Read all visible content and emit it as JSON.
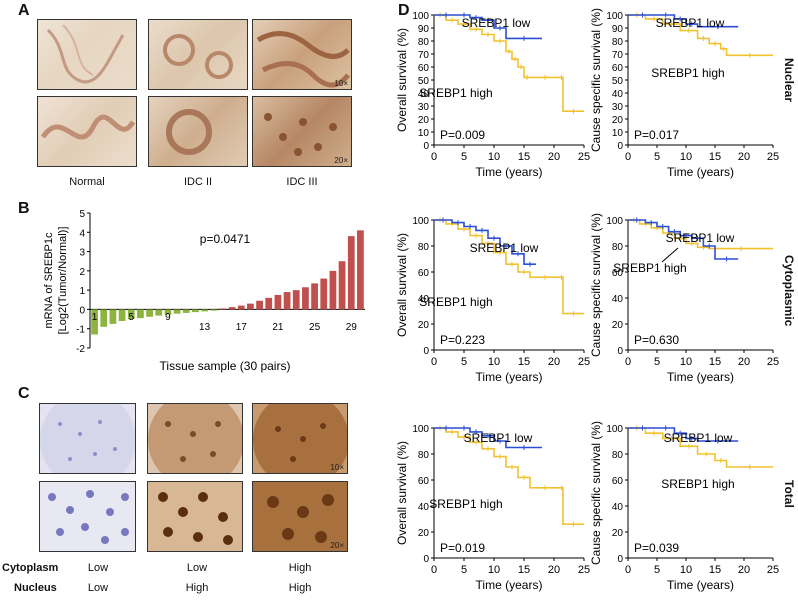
{
  "panel_letters": {
    "a": "A",
    "b": "B",
    "c": "C",
    "d": "D"
  },
  "panel_a": {
    "columns": [
      "Normal",
      "IDC II",
      "IDC III"
    ],
    "mag_top": "10×",
    "mag_bottom": "20×"
  },
  "panel_c": {
    "mag_top": "10×",
    "mag_bottom": "20×",
    "rows": [
      {
        "label": "Cytoplasm",
        "values": [
          "Low",
          "Low",
          "High"
        ]
      },
      {
        "label": "Nucleus",
        "values": [
          "Low",
          "High",
          "High"
        ]
      }
    ]
  },
  "chart_data": [
    {
      "type": "bar",
      "id": "B",
      "title": "",
      "annotation": "p=0.0471",
      "xlabel": "Tissue sample (30 pairs)",
      "ylabel_line1": "mRNA of SREBP1c",
      "ylabel_line2": "[Log2(Tumor/Normal)]",
      "ylim": [
        -2,
        5
      ],
      "yticks": [
        "-2",
        "-1",
        "0",
        "1",
        "2",
        "3",
        "4",
        "5"
      ],
      "xticks": [
        "1",
        "5",
        "9",
        "13",
        "17",
        "21",
        "25",
        "29"
      ],
      "categories": [
        1,
        2,
        3,
        4,
        5,
        6,
        7,
        8,
        9,
        10,
        11,
        12,
        13,
        14,
        15,
        16,
        17,
        18,
        19,
        20,
        21,
        22,
        23,
        24,
        25,
        26,
        27,
        28,
        29,
        30
      ],
      "values": [
        -1.3,
        -0.9,
        -0.75,
        -0.6,
        -0.5,
        -0.45,
        -0.38,
        -0.32,
        -0.27,
        -0.22,
        -0.18,
        -0.14,
        -0.1,
        -0.06,
        0.05,
        0.12,
        0.2,
        0.3,
        0.45,
        0.6,
        0.75,
        0.9,
        1.0,
        1.15,
        1.35,
        1.6,
        2.0,
        2.5,
        3.8,
        4.1
      ],
      "colors": {
        "negative": "#8db43e",
        "positive": "#c0504d"
      }
    },
    {
      "type": "line",
      "id": "D-nuclear-overall",
      "ylabel": "Overall survival (%)",
      "xlabel": "Time (years)",
      "pvalue": "P=0.009",
      "xlim": [
        0,
        25
      ],
      "ylim": [
        0,
        100
      ],
      "xticks": [
        "0",
        "5",
        "10",
        "15",
        "20",
        "25"
      ],
      "yticks": [
        "0",
        "10",
        "20",
        "30",
        "40",
        "50",
        "60",
        "70",
        "80",
        "90",
        "100"
      ],
      "series": [
        {
          "name": "SREBP1 low",
          "color": "#2b4fd6",
          "x": [
            0,
            4,
            6,
            8,
            10,
            12,
            18
          ],
          "y": [
            100,
            100,
            98,
            96,
            90,
            82,
            82
          ]
        },
        {
          "name": "SREBP1 high",
          "color": "#f2c12e",
          "x": [
            0,
            2,
            4,
            6,
            8,
            10,
            12,
            13,
            14,
            15,
            16,
            21,
            21.5,
            25
          ],
          "y": [
            100,
            96,
            93,
            89,
            85,
            80,
            72,
            66,
            60,
            52,
            52,
            52,
            26,
            26
          ]
        }
      ],
      "legend": [
        {
          "text": "SREBP1 low"
        },
        {
          "text": "SREBP1 high"
        }
      ]
    },
    {
      "type": "line",
      "id": "D-nuclear-cause",
      "ylabel": "Cause specific survival (%)",
      "xlabel": "Time (years)",
      "pvalue": "P=0.017",
      "xlim": [
        0,
        25
      ],
      "ylim": [
        0,
        100
      ],
      "xticks": [
        "0",
        "5",
        "10",
        "15",
        "20",
        "25"
      ],
      "yticks": [
        "0",
        "10",
        "20",
        "30",
        "40",
        "50",
        "60",
        "70",
        "80",
        "90",
        "100"
      ],
      "series": [
        {
          "name": "SREBP1 low",
          "color": "#2b4fd6",
          "x": [
            0,
            5,
            8,
            10,
            12,
            19
          ],
          "y": [
            100,
            100,
            97,
            93,
            91,
            91
          ]
        },
        {
          "name": "SREBP1 high",
          "color": "#f2c12e",
          "x": [
            0,
            3,
            6,
            9,
            12,
            14,
            16,
            17,
            25
          ],
          "y": [
            100,
            97,
            93,
            88,
            82,
            78,
            74,
            69,
            69
          ]
        }
      ],
      "legend": [
        {
          "text": "SREBP1 low"
        },
        {
          "text": "SREBP1 high"
        }
      ]
    },
    {
      "type": "line",
      "id": "D-cyto-overall",
      "ylabel": "Overall survival (%)",
      "xlabel": "Time (years)",
      "pvalue": "P=0.223",
      "xlim": [
        0,
        25
      ],
      "ylim": [
        0,
        100
      ],
      "xticks": [
        "0",
        "5",
        "10",
        "15",
        "20",
        "25"
      ],
      "yticks": [
        "0",
        "20",
        "40",
        "60",
        "80",
        "100"
      ],
      "series": [
        {
          "name": "SREBP1 low",
          "color": "#2b4fd6",
          "x": [
            0,
            3,
            5,
            7,
            9,
            11,
            13,
            15,
            17
          ],
          "y": [
            100,
            98,
            95,
            92,
            86,
            80,
            74,
            66,
            66
          ]
        },
        {
          "name": "SREBP1 high",
          "color": "#f2c12e",
          "x": [
            0,
            2,
            4,
            6,
            8,
            10,
            12,
            14,
            16,
            21,
            21.5,
            25
          ],
          "y": [
            100,
            97,
            93,
            88,
            82,
            75,
            66,
            60,
            56,
            56,
            28,
            28
          ]
        }
      ],
      "legend": [
        {
          "text": "SREBP1 low"
        },
        {
          "text": "SREBP1 high"
        }
      ]
    },
    {
      "type": "line",
      "id": "D-cyto-cause",
      "ylabel": "Cause specific survival (%)",
      "xlabel": "Time (years)",
      "pvalue": "P=0.630",
      "xlim": [
        0,
        25
      ],
      "ylim": [
        0,
        100
      ],
      "xticks": [
        "0",
        "5",
        "10",
        "15",
        "20",
        "25"
      ],
      "yticks": [
        "0",
        "20",
        "40",
        "60",
        "80",
        "100"
      ],
      "series": [
        {
          "name": "SREBP1 low",
          "color": "#2b4fd6",
          "x": [
            0,
            3,
            5,
            7,
            9,
            11,
            13,
            15,
            19
          ],
          "y": [
            100,
            98,
            95,
            91,
            88,
            86,
            80,
            70,
            70
          ]
        },
        {
          "name": "SREBP1 high",
          "color": "#f2c12e",
          "x": [
            0,
            2,
            4,
            6,
            8,
            10,
            12,
            14,
            25
          ],
          "y": [
            100,
            97,
            94,
            90,
            86,
            82,
            79,
            78,
            78
          ]
        }
      ],
      "legend": [
        {
          "text": "SREBP1 low"
        },
        {
          "text": "SREBP1 high"
        }
      ]
    },
    {
      "type": "line",
      "id": "D-total-overall",
      "ylabel": "Overall survival (%)",
      "xlabel": "Time (years)",
      "pvalue": "P=0.019",
      "xlim": [
        0,
        25
      ],
      "ylim": [
        0,
        100
      ],
      "xticks": [
        "0",
        "5",
        "10",
        "15",
        "20",
        "25"
      ],
      "yticks": [
        "0",
        "20",
        "40",
        "60",
        "80",
        "100"
      ],
      "series": [
        {
          "name": "SREBP1 low",
          "color": "#2b4fd6",
          "x": [
            0,
            4,
            6,
            8,
            10,
            12,
            18
          ],
          "y": [
            100,
            100,
            97,
            94,
            90,
            85,
            85
          ]
        },
        {
          "name": "SREBP1 high",
          "color": "#f2c12e",
          "x": [
            0,
            2,
            4,
            6,
            8,
            10,
            12,
            14,
            16,
            21,
            21.5,
            25
          ],
          "y": [
            100,
            97,
            93,
            89,
            84,
            78,
            70,
            62,
            54,
            54,
            26,
            26
          ]
        }
      ],
      "legend": [
        {
          "text": "SREBP1 low"
        },
        {
          "text": "SREBP1 high"
        }
      ]
    },
    {
      "type": "line",
      "id": "D-total-cause",
      "ylabel": "Cause specific survival (%)",
      "xlabel": "Time (years)",
      "pvalue": "P=0.039",
      "xlim": [
        0,
        25
      ],
      "ylim": [
        0,
        100
      ],
      "xticks": [
        "0",
        "5",
        "10",
        "15",
        "20",
        "25"
      ],
      "yticks": [
        "0",
        "20",
        "40",
        "60",
        "80",
        "100"
      ],
      "series": [
        {
          "name": "SREBP1 low",
          "color": "#2b4fd6",
          "x": [
            0,
            5,
            8,
            10,
            12,
            19
          ],
          "y": [
            100,
            100,
            96,
            92,
            90,
            90
          ]
        },
        {
          "name": "SREBP1 high",
          "color": "#f2c12e",
          "x": [
            0,
            3,
            6,
            9,
            12,
            15,
            17,
            25
          ],
          "y": [
            100,
            96,
            92,
            86,
            80,
            75,
            70,
            70
          ]
        }
      ],
      "legend": [
        {
          "text": "SREBP1 low"
        },
        {
          "text": "SREBP1 high"
        }
      ]
    }
  ],
  "row_labels": {
    "nuclear": "Nuclear",
    "cytoplasmic": "Cytoplasmic",
    "total": "Total"
  }
}
